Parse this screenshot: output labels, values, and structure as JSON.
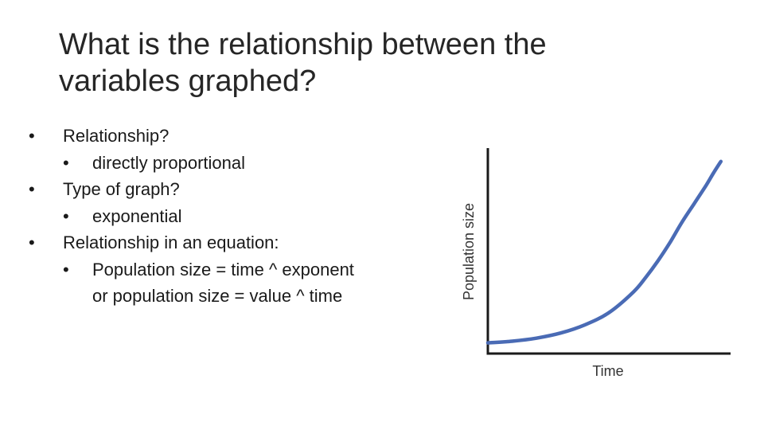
{
  "title": {
    "line1": "What is the relationship between the",
    "line2": "variables graphed?"
  },
  "bullets": [
    {
      "label": "Relationship?",
      "sub": [
        {
          "lines": [
            "directly proportional"
          ]
        }
      ]
    },
    {
      "label": "Type of graph?",
      "sub": [
        {
          "lines": [
            "exponential"
          ]
        }
      ]
    },
    {
      "label": "Relationship in an equation:",
      "sub": [
        {
          "lines": [
            "Population size = time ^ exponent",
            "or population size = value ^ time"
          ]
        }
      ]
    }
  ],
  "chart_data": {
    "type": "line",
    "xlabel": "Time",
    "ylabel": "Population size",
    "xlim": [
      0,
      10
    ],
    "ylim": [
      0,
      10
    ],
    "grid": false,
    "series": [
      {
        "color": "#4a6bb5",
        "x": [
          0,
          1,
          2,
          3,
          4,
          5,
          6,
          6.5,
          7,
          7.5,
          8,
          8.5,
          9,
          9.3,
          9.6
        ],
        "y": [
          0.52,
          0.6,
          0.75,
          1.0,
          1.4,
          2.0,
          3.0,
          3.7,
          4.5,
          5.4,
          6.4,
          7.3,
          8.2,
          8.8,
          9.35
        ]
      }
    ],
    "colors": {
      "axis": "#1a1a1a",
      "curve": "#4a6bb5"
    }
  }
}
